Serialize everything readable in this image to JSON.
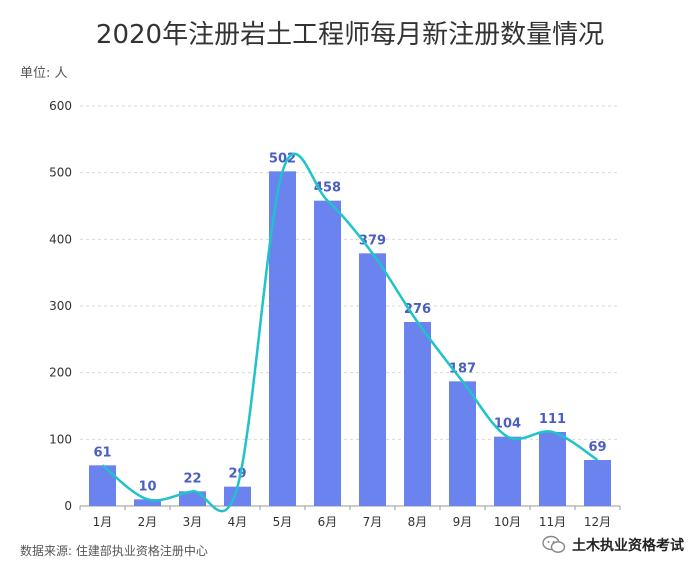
{
  "title": "2020年注册岩土工程师每月新注册数量情况",
  "unit_label": "单位: 人",
  "source_label": "数据来源: 住建部执业资格注册中心",
  "watermark": {
    "text": "土木执业资格考试",
    "icon": "wechat-icon"
  },
  "colors": {
    "bar": "#6b83ee",
    "line": "#1fc3c9",
    "label": "#4a5fc1",
    "grid": "#d9d9d9",
    "axis_text": "#333333"
  },
  "chart_data": {
    "type": "bar",
    "categories": [
      "1月",
      "2月",
      "3月",
      "4月",
      "5月",
      "6月",
      "7月",
      "8月",
      "9月",
      "10月",
      "11月",
      "12月"
    ],
    "values": [
      61,
      10,
      22,
      29,
      502,
      458,
      379,
      276,
      187,
      104,
      111,
      69
    ],
    "ylim": [
      0,
      600
    ],
    "yticks": [
      0,
      100,
      200,
      300,
      400,
      500,
      600
    ],
    "data_labels": true,
    "trend_line": true,
    "grid": true
  }
}
